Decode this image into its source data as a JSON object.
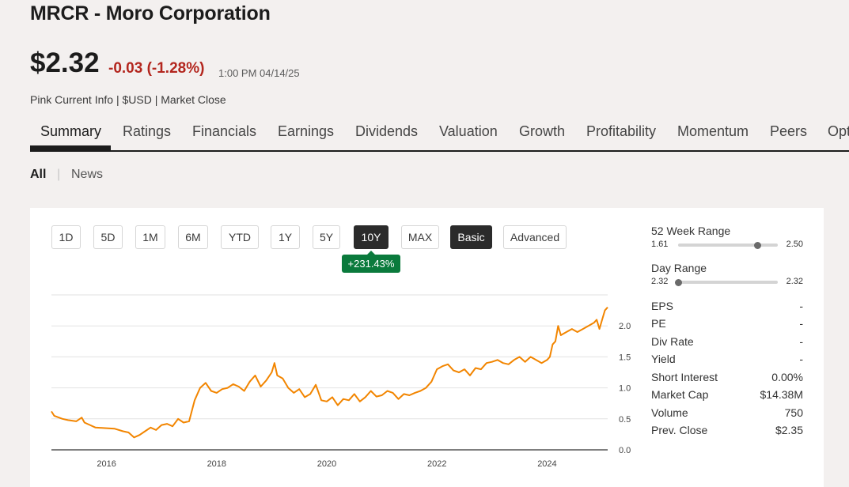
{
  "header": {
    "title": "MRCR - Moro Corporation",
    "price": "$2.32",
    "change": "-0.03 (-1.28%)",
    "timestamp": "1:00 PM 04/14/25",
    "meta": "Pink Current Info | $USD | Market Close"
  },
  "tabs": [
    "Summary",
    "Ratings",
    "Financials",
    "Earnings",
    "Dividends",
    "Valuation",
    "Growth",
    "Profitability",
    "Momentum",
    "Peers",
    "Opt"
  ],
  "subnav": {
    "all": "All",
    "news": "News"
  },
  "periods": [
    "1D",
    "5D",
    "1M",
    "6M",
    "YTD",
    "1Y",
    "5Y",
    "10Y",
    "MAX"
  ],
  "active_period": "10Y",
  "modes": [
    "Basic",
    "Advanced"
  ],
  "active_mode": "Basic",
  "performance_badge": "+231.43%",
  "colors": {
    "line": "#f28500",
    "badge": "#0a7a3c",
    "negative": "#b3261e",
    "active": "#2b2b2b"
  },
  "stats": {
    "week52": {
      "label": "52 Week Range",
      "min": "1.61",
      "max": "2.50",
      "position": 0.8
    },
    "day": {
      "label": "Day Range",
      "min": "2.32",
      "max": "2.32",
      "position": 0.0
    },
    "rows": [
      {
        "label": "EPS",
        "value": "-"
      },
      {
        "label": "PE",
        "value": "-"
      },
      {
        "label": "Div Rate",
        "value": "-"
      },
      {
        "label": "Yield",
        "value": "-"
      },
      {
        "label": "Short Interest",
        "value": "0.00%"
      },
      {
        "label": "Market Cap",
        "value": "$14.38M"
      },
      {
        "label": "Volume",
        "value": "750"
      },
      {
        "label": "Prev. Close",
        "value": "$2.35"
      }
    ]
  },
  "chart_data": {
    "type": "line",
    "x_ticks": [
      "2016",
      "2018",
      "2020",
      "2022",
      "2024"
    ],
    "y_ticks": [
      "0.0",
      "0.5",
      "1.0",
      "1.5",
      "2.0"
    ],
    "ylim": [
      0,
      2.5
    ],
    "xlim": [
      2015.0,
      2025.1
    ],
    "grid": true,
    "series": [
      {
        "values": [
          [
            2015.0,
            0.62
          ],
          [
            2015.05,
            0.55
          ],
          [
            2015.2,
            0.5
          ],
          [
            2015.3,
            0.48
          ],
          [
            2015.45,
            0.46
          ],
          [
            2015.55,
            0.52
          ],
          [
            2015.6,
            0.44
          ],
          [
            2015.7,
            0.4
          ],
          [
            2015.8,
            0.36
          ],
          [
            2016.0,
            0.35
          ],
          [
            2016.15,
            0.34
          ],
          [
            2016.3,
            0.3
          ],
          [
            2016.4,
            0.28
          ],
          [
            2016.5,
            0.2
          ],
          [
            2016.6,
            0.24
          ],
          [
            2016.7,
            0.3
          ],
          [
            2016.8,
            0.36
          ],
          [
            2016.9,
            0.32
          ],
          [
            2017.0,
            0.4
          ],
          [
            2017.1,
            0.42
          ],
          [
            2017.2,
            0.38
          ],
          [
            2017.3,
            0.5
          ],
          [
            2017.4,
            0.44
          ],
          [
            2017.5,
            0.46
          ],
          [
            2017.6,
            0.8
          ],
          [
            2017.7,
            1.0
          ],
          [
            2017.8,
            1.08
          ],
          [
            2017.9,
            0.95
          ],
          [
            2018.0,
            0.92
          ],
          [
            2018.1,
            0.98
          ],
          [
            2018.2,
            1.0
          ],
          [
            2018.3,
            1.06
          ],
          [
            2018.4,
            1.02
          ],
          [
            2018.5,
            0.95
          ],
          [
            2018.6,
            1.1
          ],
          [
            2018.7,
            1.2
          ],
          [
            2018.8,
            1.02
          ],
          [
            2018.9,
            1.12
          ],
          [
            2019.0,
            1.25
          ],
          [
            2019.05,
            1.4
          ],
          [
            2019.1,
            1.2
          ],
          [
            2019.2,
            1.15
          ],
          [
            2019.3,
            1.0
          ],
          [
            2019.4,
            0.92
          ],
          [
            2019.5,
            0.98
          ],
          [
            2019.6,
            0.85
          ],
          [
            2019.7,
            0.9
          ],
          [
            2019.8,
            1.05
          ],
          [
            2019.9,
            0.8
          ],
          [
            2020.0,
            0.78
          ],
          [
            2020.1,
            0.85
          ],
          [
            2020.2,
            0.72
          ],
          [
            2020.3,
            0.82
          ],
          [
            2020.4,
            0.8
          ],
          [
            2020.5,
            0.9
          ],
          [
            2020.6,
            0.78
          ],
          [
            2020.7,
            0.85
          ],
          [
            2020.8,
            0.95
          ],
          [
            2020.9,
            0.86
          ],
          [
            2021.0,
            0.88
          ],
          [
            2021.1,
            0.95
          ],
          [
            2021.2,
            0.92
          ],
          [
            2021.3,
            0.82
          ],
          [
            2021.4,
            0.9
          ],
          [
            2021.5,
            0.88
          ],
          [
            2021.6,
            0.92
          ],
          [
            2021.7,
            0.95
          ],
          [
            2021.8,
            1.0
          ],
          [
            2021.9,
            1.1
          ],
          [
            2022.0,
            1.3
          ],
          [
            2022.1,
            1.35
          ],
          [
            2022.2,
            1.38
          ],
          [
            2022.3,
            1.28
          ],
          [
            2022.4,
            1.25
          ],
          [
            2022.5,
            1.3
          ],
          [
            2022.6,
            1.2
          ],
          [
            2022.7,
            1.32
          ],
          [
            2022.8,
            1.3
          ],
          [
            2022.9,
            1.4
          ],
          [
            2023.0,
            1.42
          ],
          [
            2023.1,
            1.45
          ],
          [
            2023.2,
            1.4
          ],
          [
            2023.3,
            1.38
          ],
          [
            2023.4,
            1.45
          ],
          [
            2023.5,
            1.5
          ],
          [
            2023.6,
            1.42
          ],
          [
            2023.7,
            1.5
          ],
          [
            2023.8,
            1.45
          ],
          [
            2023.9,
            1.4
          ],
          [
            2024.0,
            1.45
          ],
          [
            2024.05,
            1.5
          ],
          [
            2024.1,
            1.7
          ],
          [
            2024.15,
            1.75
          ],
          [
            2024.2,
            2.0
          ],
          [
            2024.25,
            1.85
          ],
          [
            2024.35,
            1.9
          ],
          [
            2024.45,
            1.95
          ],
          [
            2024.55,
            1.9
          ],
          [
            2024.65,
            1.95
          ],
          [
            2024.75,
            2.0
          ],
          [
            2024.85,
            2.05
          ],
          [
            2024.9,
            2.1
          ],
          [
            2024.95,
            1.95
          ],
          [
            2025.0,
            2.1
          ],
          [
            2025.05,
            2.25
          ],
          [
            2025.1,
            2.3
          ]
        ]
      }
    ]
  }
}
